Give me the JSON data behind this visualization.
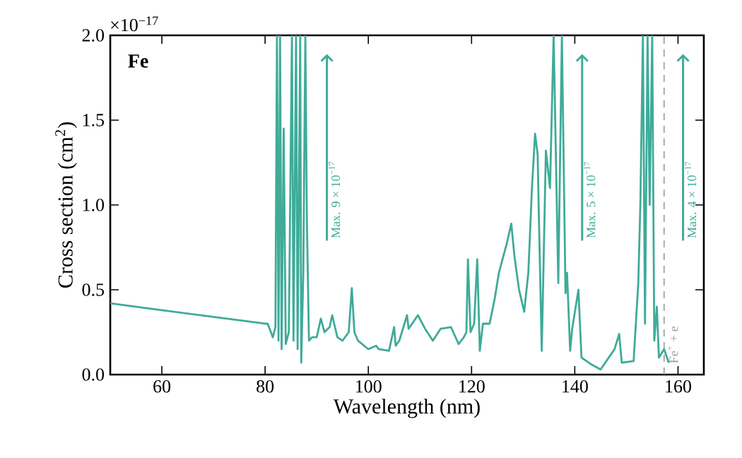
{
  "chart_data": {
    "type": "line",
    "xlabel": "Wavelength (nm)",
    "ylabel": "Cross section (cm$^{2}$)",
    "color": "#3fab98",
    "xlim": [
      50,
      165
    ],
    "ylim": [
      0,
      2.0
    ],
    "xticks": [
      60,
      80,
      100,
      120,
      140,
      160
    ],
    "yticks": [
      {
        "value": 0,
        "label": "0.0"
      },
      {
        "value": 0.5,
        "label": "0.5"
      },
      {
        "value": 1.0,
        "label": "1.0"
      },
      {
        "value": 1.5,
        "label": "1.5"
      },
      {
        "value": 2.0,
        "label": "2.0"
      }
    ],
    "grid": false,
    "x": [
      50,
      60,
      70,
      80,
      80.5,
      81.5,
      82.0,
      82.3,
      82.6,
      82.9,
      83.2,
      83.6,
      84.0,
      84.6,
      85.2,
      85.5,
      86.0,
      86.3,
      86.8,
      87.0,
      87.4,
      87.8,
      88.1,
      88.5,
      89.1,
      90.0,
      90.8,
      91.5,
      92.5,
      93.0,
      94.0,
      95.0,
      96.2,
      96.8,
      97.3,
      98.0,
      100.0,
      101.5,
      102.0,
      104.0,
      105.0,
      105.3,
      106.0,
      107.5,
      107.8,
      109.6,
      111.0,
      112.5,
      114.0,
      116.0,
      117.5,
      118.5,
      119.0,
      119.3,
      119.8,
      120.5,
      121.1,
      121.6,
      122.2,
      123.5,
      124.5,
      125.3,
      126.8,
      127.7,
      128.3,
      129.2,
      130.2,
      131.0,
      131.7,
      132.3,
      132.8,
      133.1,
      133.6,
      134.4,
      135.2,
      135.9,
      136.8,
      137.5,
      138.2,
      138.5,
      139.1,
      139.5,
      140.7,
      141.3,
      143.2,
      145.0,
      147.7,
      148.6,
      149.1,
      151.4,
      152.3,
      152.7,
      153.2,
      153.6,
      154.1,
      154.5,
      155.0,
      155.4,
      155.9,
      156.3,
      157.3,
      158.2
    ],
    "values": [
      0.42,
      0.38,
      0.34,
      0.3,
      0.3,
      0.22,
      0.28,
      2.0,
      0.2,
      2.0,
      0.15,
      1.45,
      0.18,
      0.25,
      2.0,
      0.2,
      2.0,
      0.15,
      2.0,
      0.07,
      0.6,
      2.0,
      0.9,
      0.2,
      0.22,
      0.22,
      0.33,
      0.25,
      0.28,
      0.35,
      0.22,
      0.2,
      0.25,
      0.51,
      0.25,
      0.2,
      0.15,
      0.17,
      0.15,
      0.14,
      0.28,
      0.17,
      0.2,
      0.35,
      0.27,
      0.35,
      0.27,
      0.2,
      0.27,
      0.28,
      0.18,
      0.22,
      0.25,
      0.68,
      0.25,
      0.3,
      0.68,
      0.14,
      0.3,
      0.3,
      0.45,
      0.6,
      0.77,
      0.89,
      0.7,
      0.5,
      0.37,
      0.6,
      1.1,
      1.42,
      1.3,
      0.85,
      0.14,
      1.32,
      1.1,
      2.0,
      0.54,
      2.0,
      0.48,
      0.6,
      0.14,
      0.27,
      0.5,
      0.1,
      0.06,
      0.03,
      0.15,
      0.24,
      0.07,
      0.08,
      0.54,
      1.0,
      2.0,
      0.3,
      2.0,
      1.0,
      2.0,
      0.2,
      0.4,
      0.1,
      0.15,
      0.07
    ],
    "ref_lines": [
      {
        "axis": "x",
        "value": 157.3,
        "label": "Fe$^{+}$ + e",
        "color": "#999999",
        "line_style": "dashed"
      }
    ],
    "annotations": [
      "Fe",
      "×10$^{−17}$",
      "Max. 9 × 10$^{−17}$",
      "Max. 5 × 10$^{−17}$",
      "Max. 4 × 10$^{−17}$"
    ]
  }
}
